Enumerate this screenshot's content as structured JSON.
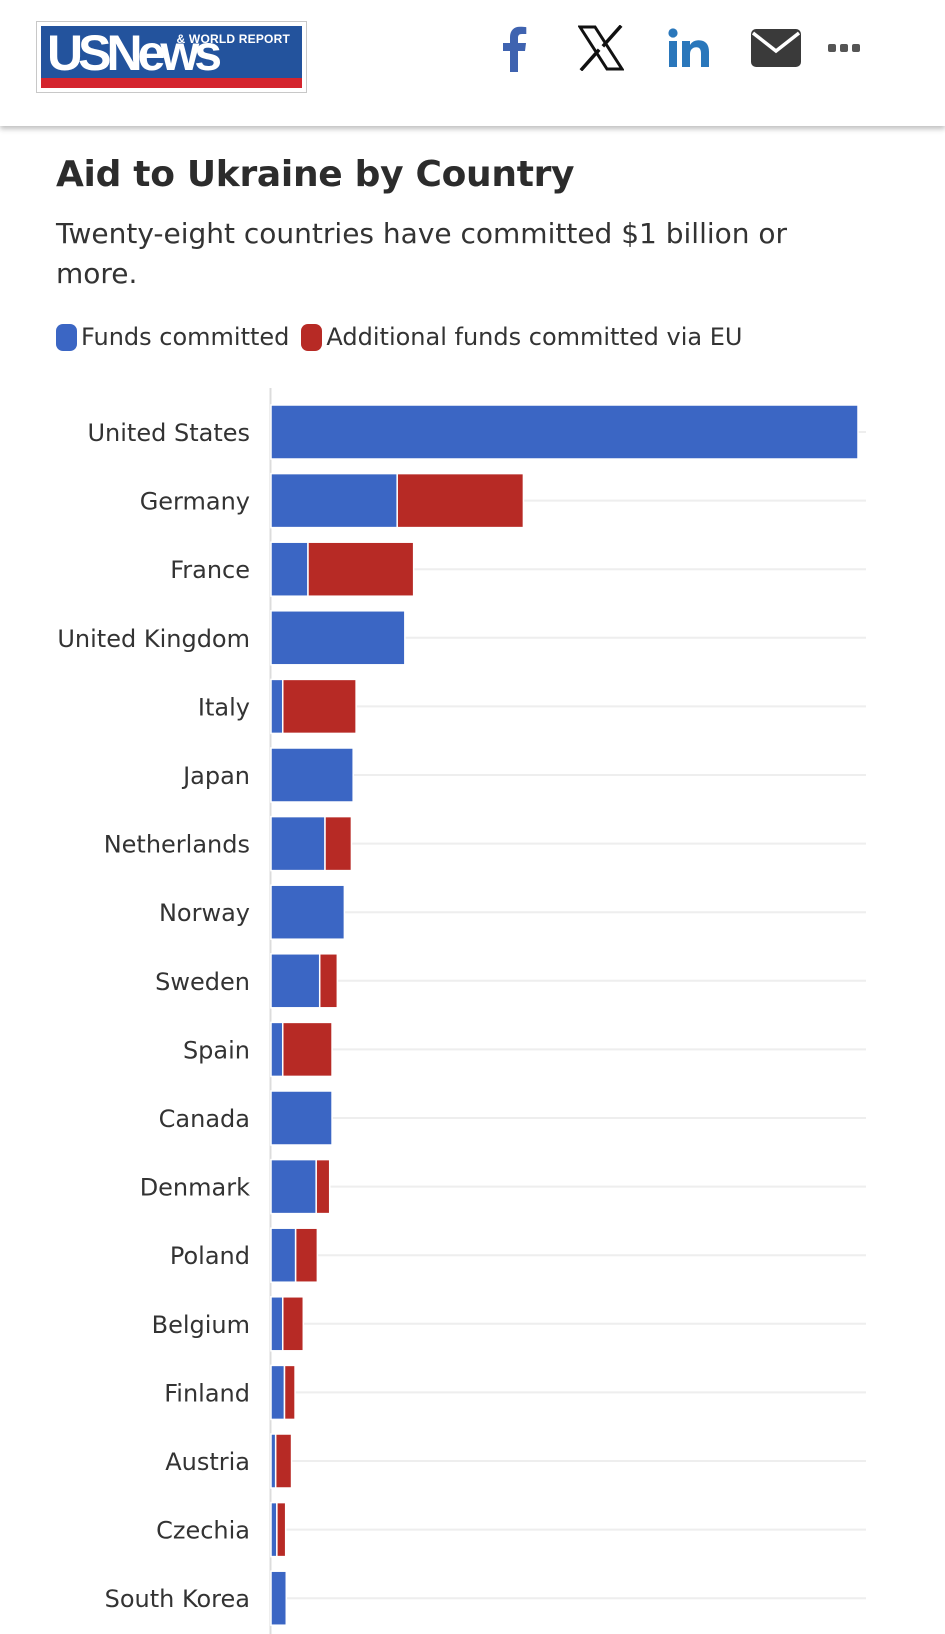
{
  "header": {
    "logo": {
      "main": "USNews",
      "sub": "& WORLD REPORT"
    },
    "share_icons": [
      "facebook-icon",
      "x-icon",
      "linkedin-icon",
      "email-icon",
      "more-icon"
    ]
  },
  "colors": {
    "funds_committed": "#3b66c4",
    "additional_eu": "#b72a25",
    "brand_blue": "#23539d",
    "brand_red": "#d4252e"
  },
  "chart_data": {
    "type": "bar",
    "orientation": "horizontal",
    "stacked": true,
    "title": "Aid to Ukraine by Country",
    "subtitle": "Twenty-eight countries have committed $1 billion or more.",
    "legend_position": "top-left",
    "grid": true,
    "categories": [
      "United States",
      "Germany",
      "France",
      "United Kingdom",
      "Italy",
      "Japan",
      "Netherlands",
      "Norway",
      "Sweden",
      "Spain",
      "Canada",
      "Denmark",
      "Poland",
      "Belgium",
      "Finland",
      "Austria",
      "Czechia",
      "South Korea"
    ],
    "series": [
      {
        "name": "Funds committed",
        "color": "#3b66c4",
        "values": [
          100,
          21.5,
          6.3,
          22.8,
          2.0,
          14.0,
          9.2,
          12.5,
          8.3,
          2.0,
          10.4,
          7.7,
          4.2,
          2.0,
          2.3,
          0.8,
          1.0,
          2.6
        ]
      },
      {
        "name": "Additional funds committed via EU",
        "color": "#b72a25",
        "values": [
          0,
          21.5,
          18.0,
          0,
          12.5,
          0,
          4.5,
          0,
          3.0,
          8.4,
          0,
          2.3,
          3.7,
          3.5,
          1.8,
          2.7,
          1.5,
          0
        ]
      }
    ]
  }
}
